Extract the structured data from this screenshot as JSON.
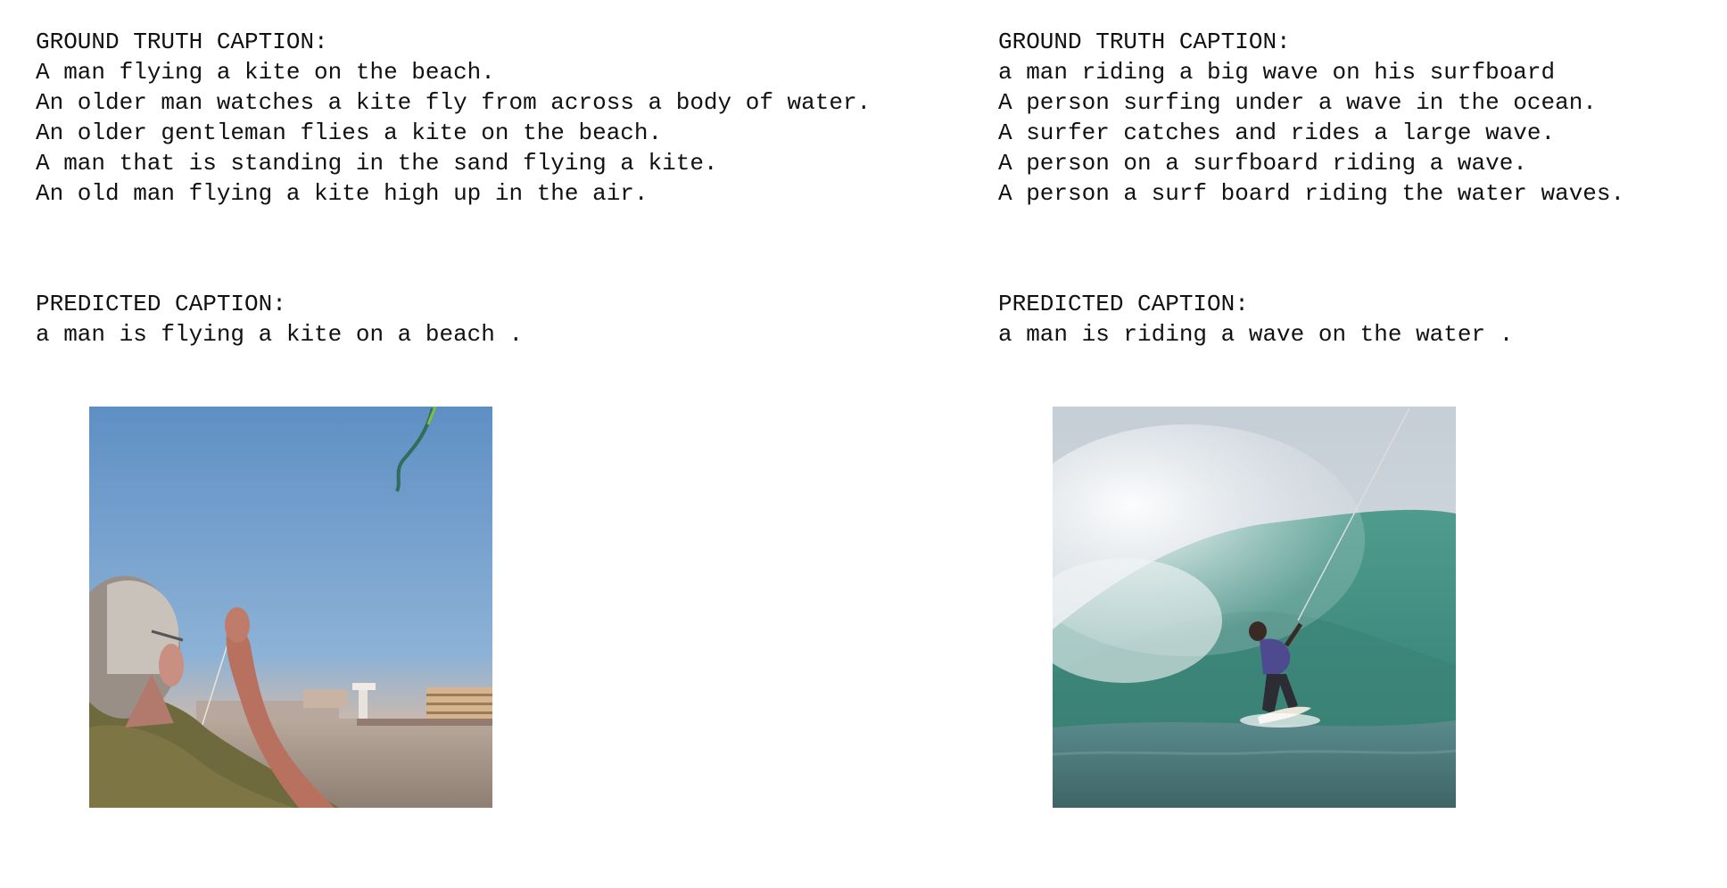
{
  "panels": [
    {
      "ground_truth_heading": "GROUND TRUTH CAPTION:",
      "ground_truth_captions": [
        "A man flying a kite on the beach.",
        "An older man watches a kite fly from across a body of water.",
        "An older gentleman flies a kite on the beach.",
        "A man that is standing in the sand flying a kite.",
        "An old man flying a kite high up in the air."
      ],
      "predicted_heading": "PREDICTED CAPTION:",
      "predicted_caption": "a man is flying a kite on a beach ."
    },
    {
      "ground_truth_heading": "GROUND TRUTH CAPTION:",
      "ground_truth_captions": [
        "a man riding a big wave on his surfboard",
        "A person surfing under a wave in the ocean.",
        "A surfer catches and rides a large wave.",
        "A person on a surfboard riding a wave.",
        "A person a surf board riding the water waves."
      ],
      "predicted_heading": "PREDICTED CAPTION:",
      "predicted_caption": "a man is riding a wave on the water ."
    }
  ]
}
